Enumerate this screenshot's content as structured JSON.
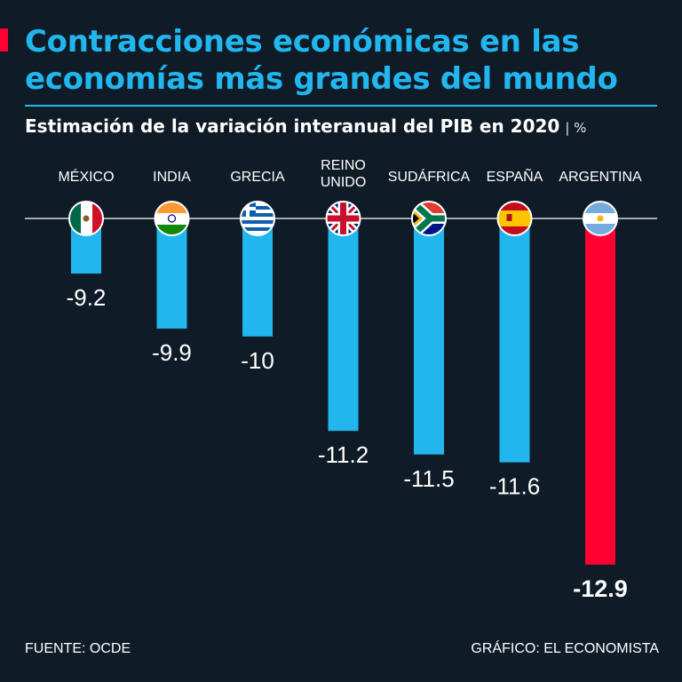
{
  "header": {
    "title": "Contracciones económicas en las economías más grandes del mundo",
    "subtitle": "Estimación de la variación interanual del PIB en 2020",
    "unit": "| %"
  },
  "footer": {
    "source": "FUENTE: OCDE",
    "credit": "GRÁFICO: EL ECONOMISTA"
  },
  "colors": {
    "background": "#0f1b27",
    "bar": "#21b7ee",
    "highlight": "#ff0033",
    "title": "#21b7ee"
  },
  "chart_data": {
    "type": "bar",
    "title": "Estimación de la variación interanual del PIB en 2020",
    "categories": [
      "MÉXICO",
      "INDIA",
      "GRECIA",
      "REINO UNIDO",
      "SUDÁFRICA",
      "ESPAÑA",
      "ARGENTINA"
    ],
    "category_lines": [
      [
        "MÉXICO"
      ],
      [
        "INDIA"
      ],
      [
        "GRECIA"
      ],
      [
        "REINO",
        "UNIDO"
      ],
      [
        "SUDÁFRICA"
      ],
      [
        "ESPAÑA"
      ],
      [
        "ARGENTINA"
      ]
    ],
    "values": [
      -9.2,
      -9.9,
      -10,
      -11.2,
      -11.5,
      -11.6,
      -12.9
    ],
    "value_labels": [
      "-9.2",
      "-9.9",
      "-10",
      "-11.2",
      "-11.5",
      "-11.6",
      "-12.9"
    ],
    "highlight_index": 6,
    "flag_icons": [
      "mexico-flag-icon",
      "india-flag-icon",
      "greece-flag-icon",
      "uk-flag-icon",
      "south-africa-flag-icon",
      "spain-flag-icon",
      "argentina-flag-icon"
    ],
    "xlabel": "",
    "ylabel": "",
    "grid": false,
    "legend": "none"
  }
}
